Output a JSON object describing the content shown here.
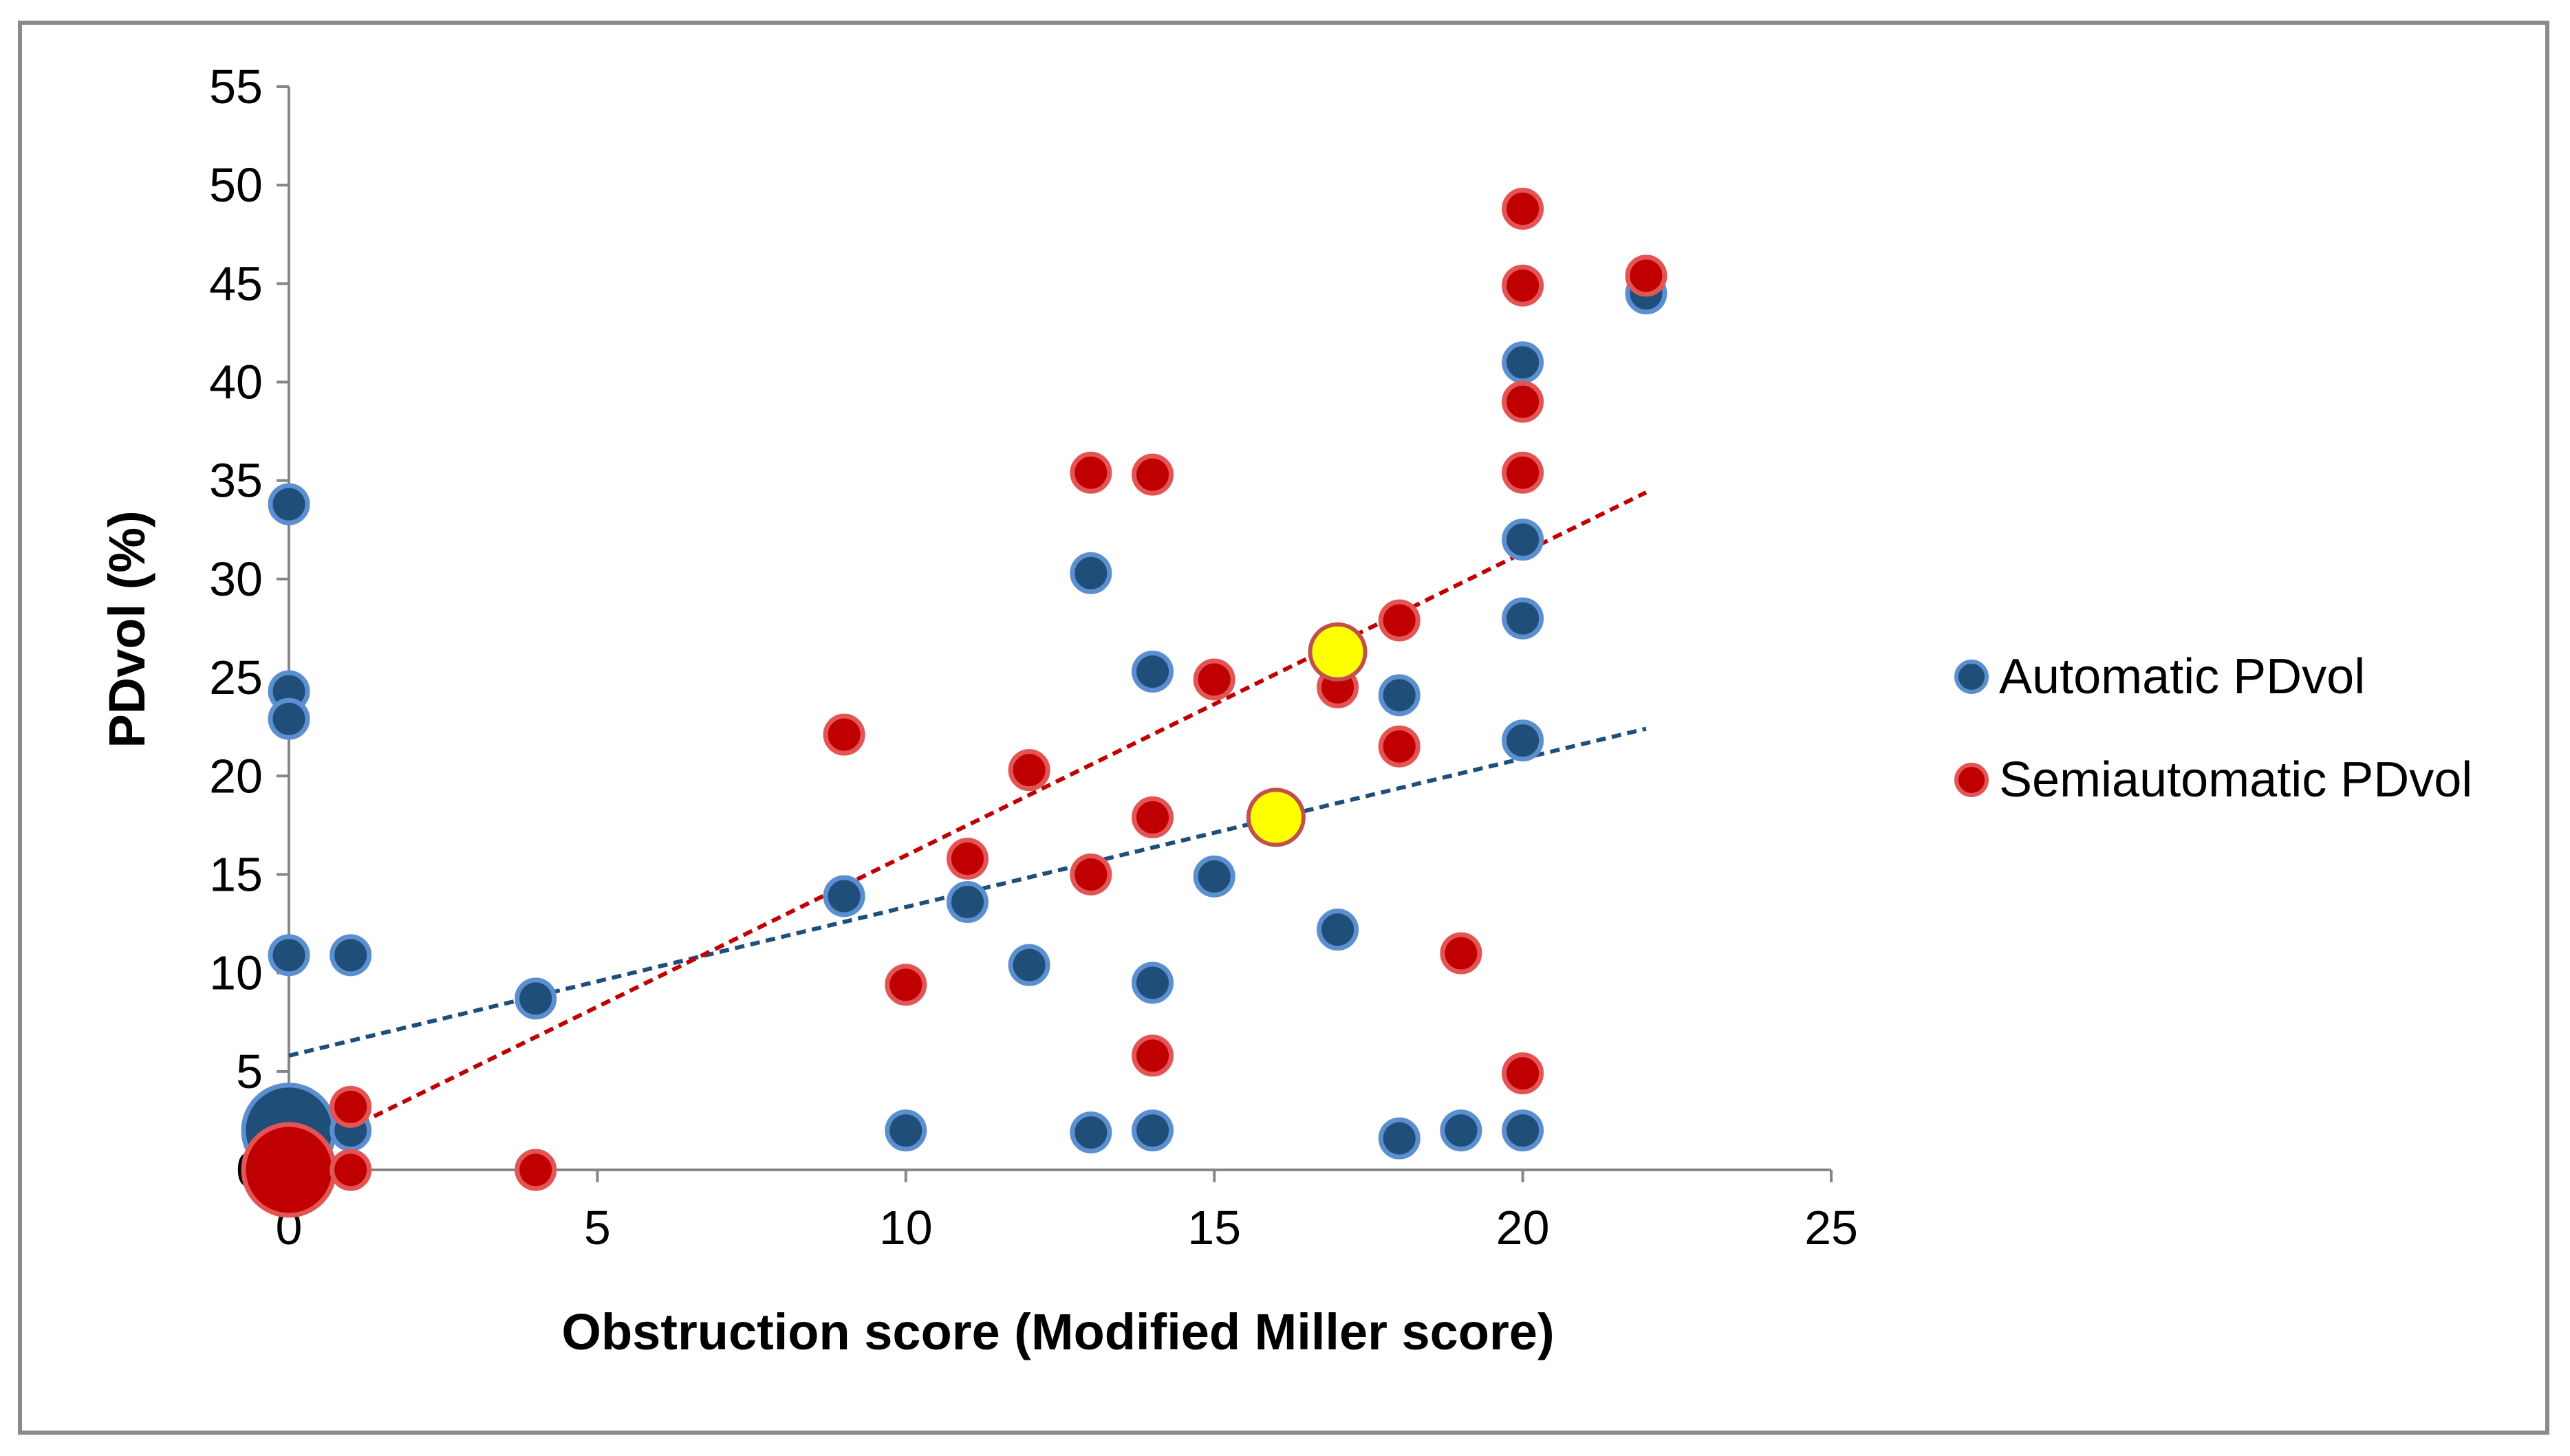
{
  "chart_data": {
    "type": "scatter",
    "title": "",
    "xlabel": "Obstruction score (Modified Miller score)",
    "ylabel": "PDvol (%)",
    "xlim": [
      0,
      25
    ],
    "ylim": [
      0,
      55
    ],
    "xticks": [
      "0",
      "5",
      "10",
      "15",
      "20",
      "25"
    ],
    "yticks": [
      "0",
      "5",
      "10",
      "15",
      "20",
      "25",
      "30",
      "35",
      "40",
      "45",
      "50",
      "55"
    ],
    "xtick_values": [
      0,
      5,
      10,
      15,
      20,
      25
    ],
    "ytick_values": [
      0,
      5,
      10,
      15,
      20,
      25,
      30,
      35,
      40,
      45,
      50,
      55
    ],
    "grid": false,
    "legend_position": "right",
    "series": [
      {
        "name": "Automatic PDvol",
        "color": "#1f4e79",
        "edge": "#5b8fd0",
        "points": [
          {
            "x": 0,
            "y": 33.8
          },
          {
            "x": 0,
            "y": 24.3
          },
          {
            "x": 0,
            "y": 22.9
          },
          {
            "x": 0,
            "y": 10.9
          },
          {
            "x": 0,
            "y": 2.0,
            "large": true
          },
          {
            "x": 1,
            "y": 10.9
          },
          {
            "x": 1,
            "y": 2.0
          },
          {
            "x": 4,
            "y": 8.7
          },
          {
            "x": 9,
            "y": 13.9
          },
          {
            "x": 10,
            "y": 2.0
          },
          {
            "x": 11,
            "y": 13.6
          },
          {
            "x": 12,
            "y": 10.4
          },
          {
            "x": 13,
            "y": 30.3
          },
          {
            "x": 13,
            "y": 1.9
          },
          {
            "x": 14,
            "y": 25.3
          },
          {
            "x": 14,
            "y": 9.5
          },
          {
            "x": 14,
            "y": 2.0
          },
          {
            "x": 15,
            "y": 14.9
          },
          {
            "x": 17,
            "y": 12.2
          },
          {
            "x": 18,
            "y": 24.1
          },
          {
            "x": 18,
            "y": 1.6
          },
          {
            "x": 19,
            "y": 2.0
          },
          {
            "x": 20,
            "y": 41.0
          },
          {
            "x": 20,
            "y": 32.0
          },
          {
            "x": 20,
            "y": 28.0
          },
          {
            "x": 20,
            "y": 21.8
          },
          {
            "x": 20,
            "y": 2.0
          },
          {
            "x": 22,
            "y": 44.5
          }
        ],
        "mean_point": {
          "x": 16,
          "y": 17.9
        },
        "trendline": {
          "x": [
            0,
            22
          ],
          "y": [
            5.8,
            22.4
          ]
        }
      },
      {
        "name": "Semiautomatic PDvol",
        "color": "#c00000",
        "edge": "#e35555",
        "points": [
          {
            "x": 0,
            "y": 0,
            "large": true
          },
          {
            "x": 1,
            "y": 3.2
          },
          {
            "x": 1,
            "y": 0
          },
          {
            "x": 4,
            "y": 0
          },
          {
            "x": 9,
            "y": 22.1
          },
          {
            "x": 10,
            "y": 9.4
          },
          {
            "x": 11,
            "y": 15.8
          },
          {
            "x": 12,
            "y": 20.3
          },
          {
            "x": 13,
            "y": 35.4
          },
          {
            "x": 13,
            "y": 15.0
          },
          {
            "x": 14,
            "y": 35.3
          },
          {
            "x": 14,
            "y": 17.9
          },
          {
            "x": 14,
            "y": 5.8
          },
          {
            "x": 15,
            "y": 24.9
          },
          {
            "x": 17,
            "y": 24.5
          },
          {
            "x": 18,
            "y": 27.9
          },
          {
            "x": 18,
            "y": 21.5
          },
          {
            "x": 19,
            "y": 11.0
          },
          {
            "x": 20,
            "y": 48.8
          },
          {
            "x": 20,
            "y": 44.9
          },
          {
            "x": 20,
            "y": 39.0
          },
          {
            "x": 20,
            "y": 35.4
          },
          {
            "x": 20,
            "y": 4.9
          },
          {
            "x": 22,
            "y": 45.4
          }
        ],
        "mean_point": {
          "x": 17,
          "y": 26.3
        },
        "trendline": {
          "x": [
            0,
            22
          ],
          "y": [
            0.6,
            34.4
          ]
        }
      }
    ],
    "mean_point_color": "#ffff00"
  }
}
